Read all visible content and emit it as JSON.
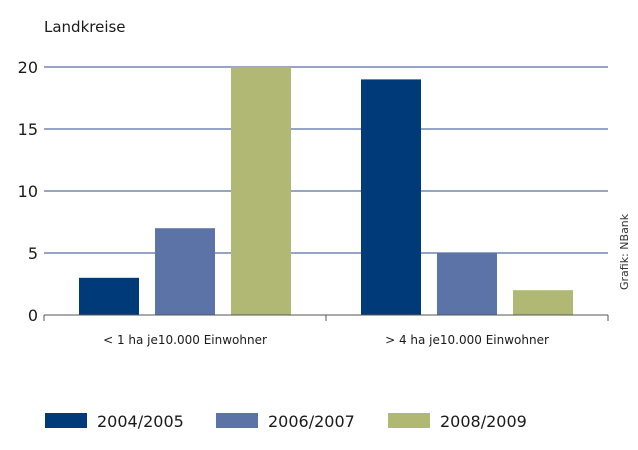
{
  "chart_data": {
    "type": "bar",
    "ylabel": "Landkreise",
    "categories": [
      "< 1 ha je10.000 Einwohner",
      "> 4 ha je10.000 Einwohner"
    ],
    "series": [
      {
        "name": "2004/2005",
        "values": [
          3,
          19
        ],
        "color": "#003a78"
      },
      {
        "name": "2006/2007",
        "values": [
          7,
          5
        ],
        "color": "#5c73a8"
      },
      {
        "name": "2008/2009",
        "values": [
          20,
          2
        ],
        "color": "#b0b874"
      }
    ],
    "ylim": [
      0,
      20
    ],
    "yticks": [
      0,
      5,
      10,
      15,
      20
    ],
    "grid": true,
    "legend_position": "bottom",
    "credit": "Grafik: NBank",
    "gridline_color": "#2e4a8c"
  }
}
